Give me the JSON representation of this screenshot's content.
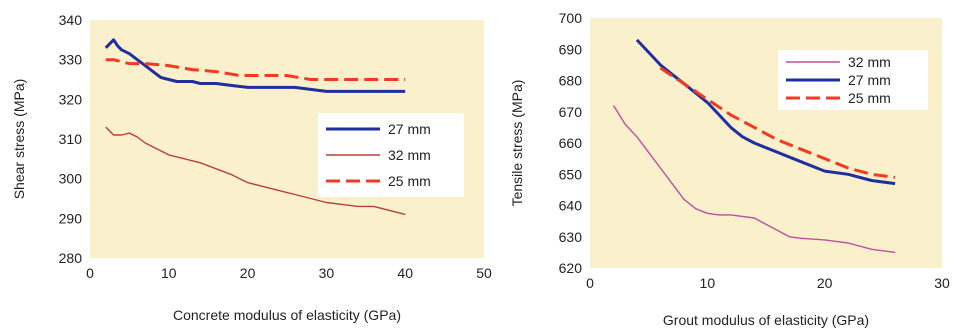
{
  "chart_data": [
    {
      "type": "line",
      "xlabel": "Concrete modulus of elasticity (GPa)",
      "ylabel": "Shear stress (MPa)",
      "xlim": [
        0,
        50
      ],
      "ylim": [
        280,
        340
      ],
      "xticks": [
        0,
        10,
        20,
        30,
        40,
        50
      ],
      "yticks": [
        280,
        290,
        300,
        310,
        320,
        330,
        340
      ],
      "grid": false,
      "plot_background": "#FAF0CC",
      "legend_position": "center-right",
      "legend_order": [
        "27 mm",
        "32 mm",
        "25 mm"
      ],
      "series": [
        {
          "name": "27 mm",
          "color": "#1F2F9F",
          "dash": "solid",
          "width": "thick",
          "x": [
            2,
            3,
            3.5,
            4,
            5,
            6,
            7,
            8,
            9,
            10,
            11,
            12,
            13,
            14,
            16,
            18,
            20,
            22,
            24,
            26,
            28,
            30,
            32,
            34,
            36,
            38,
            40
          ],
          "y": [
            333,
            335,
            333.5,
            332.5,
            331.5,
            330,
            328.5,
            327,
            325.5,
            325,
            324.5,
            324.5,
            324.5,
            324,
            324,
            323.5,
            323,
            323,
            323,
            323,
            322.5,
            322,
            322,
            322,
            322,
            322,
            322
          ]
        },
        {
          "name": "32 mm",
          "color": "#B5423A",
          "dash": "solid",
          "width": "thin",
          "x": [
            2,
            3,
            4,
            5,
            6,
            7,
            8,
            10,
            12,
            14,
            16,
            18,
            20,
            22,
            24,
            26,
            28,
            30,
            32,
            34,
            36,
            38,
            40
          ],
          "y": [
            313,
            311,
            311,
            311.5,
            310.5,
            309,
            308,
            306,
            305,
            304,
            302.5,
            301,
            299,
            298,
            297,
            296,
            295,
            294,
            293.5,
            293,
            293,
            292,
            291
          ]
        },
        {
          "name": "25 mm",
          "color": "#F23A22",
          "dash": "dashed",
          "width": "thick",
          "x": [
            2,
            3,
            4,
            5,
            7,
            10,
            13,
            16,
            19,
            22,
            25,
            28,
            31,
            34,
            37,
            40
          ],
          "y": [
            330,
            330,
            329.5,
            329,
            329,
            328.5,
            327.5,
            327,
            326,
            326,
            326,
            325,
            325,
            325,
            325,
            325
          ]
        }
      ]
    },
    {
      "type": "line",
      "xlabel": "Grout modulus of elasticity (GPa)",
      "ylabel": "Tensile stress (MPa)",
      "xlim": [
        0,
        30
      ],
      "ylim": [
        620,
        700
      ],
      "xticks": [
        0,
        10,
        20,
        30
      ],
      "yticks": [
        620,
        630,
        640,
        650,
        660,
        670,
        680,
        690,
        700
      ],
      "grid": false,
      "plot_background": "#FAF0CC",
      "legend_position": "top-right",
      "legend_order": [
        "32 mm",
        "27 mm",
        "25 mm"
      ],
      "series": [
        {
          "name": "32 mm",
          "color": "#C04FA0",
          "dash": "solid",
          "width": "thin",
          "x": [
            2,
            3,
            4,
            5,
            6,
            7,
            8,
            9,
            10,
            11,
            12,
            13,
            14,
            15,
            16,
            17,
            18,
            20,
            22,
            24,
            26
          ],
          "y": [
            672,
            666,
            662,
            657,
            652,
            647,
            642,
            639,
            637.5,
            637,
            637,
            636.5,
            636,
            634,
            632,
            630,
            629.5,
            629,
            628,
            626,
            625
          ]
        },
        {
          "name": "27 mm",
          "color": "#1F2F9F",
          "dash": "solid",
          "width": "thick",
          "x": [
            4,
            5,
            6,
            7,
            8,
            9,
            10,
            11,
            12,
            13,
            14,
            16,
            18,
            20,
            22,
            24,
            26
          ],
          "y": [
            693,
            689,
            685,
            682,
            679,
            676,
            673,
            669,
            665,
            662,
            660,
            657,
            654,
            651,
            650,
            648,
            647
          ]
        },
        {
          "name": "25 mm",
          "color": "#F23A22",
          "dash": "dashed",
          "width": "thick",
          "x": [
            6,
            8,
            10,
            12,
            14,
            16,
            18,
            20,
            22,
            24,
            26
          ],
          "y": [
            684,
            679,
            674,
            669,
            665,
            661,
            658,
            655,
            652,
            650,
            649
          ]
        }
      ]
    }
  ]
}
